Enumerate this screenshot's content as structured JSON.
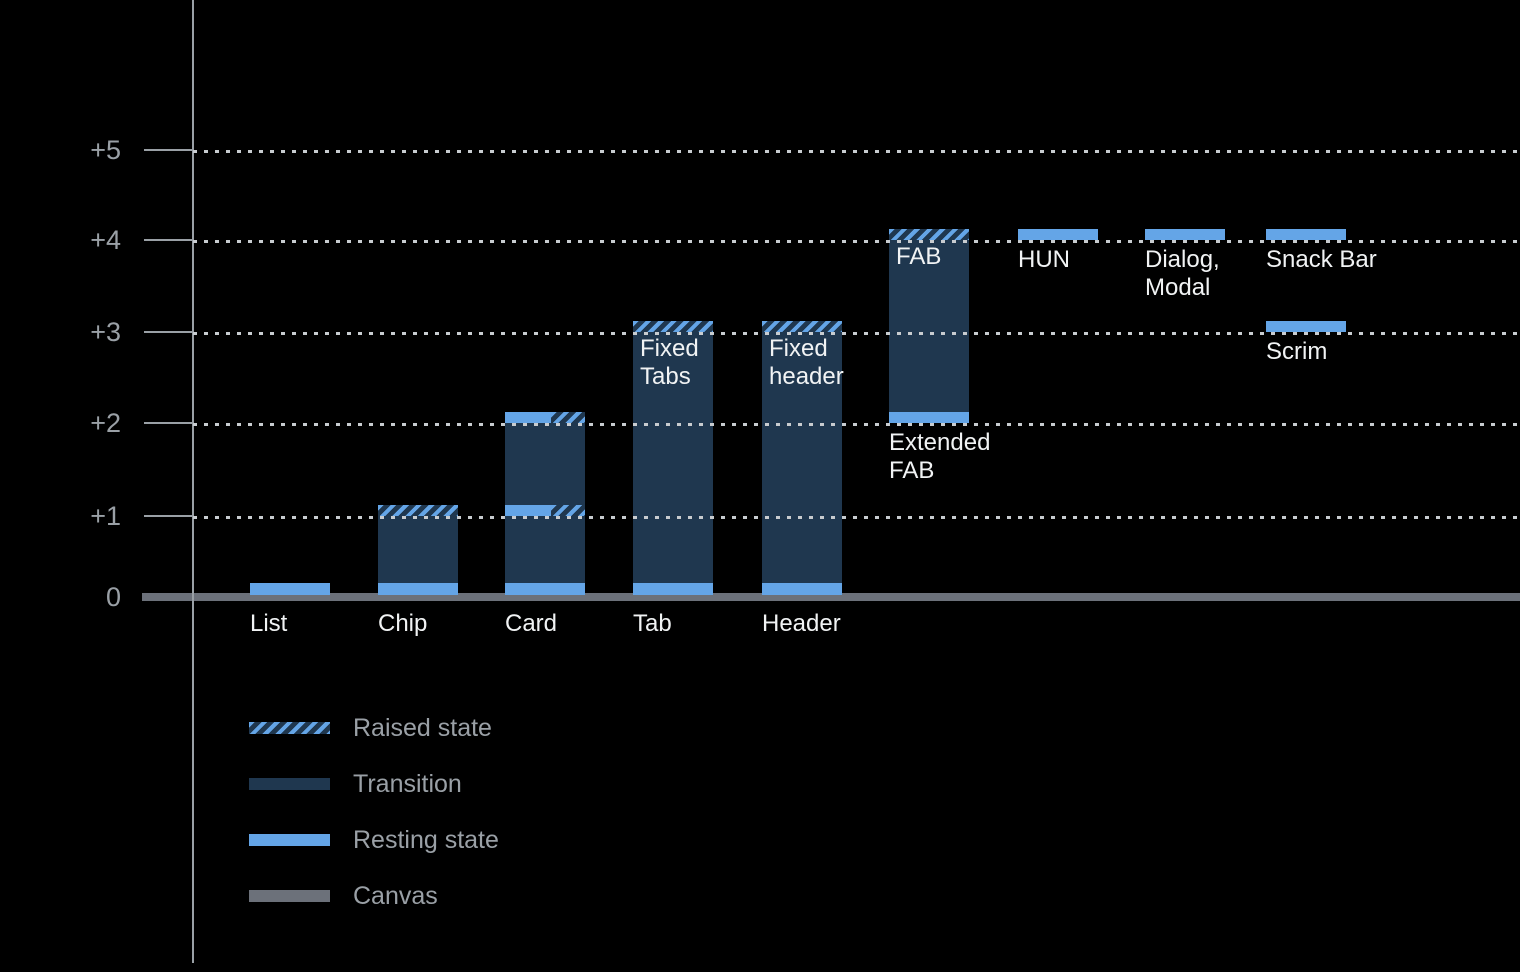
{
  "background": "#000000",
  "colors": {
    "background": "#000000",
    "raised_hatch_blue": "#64A5E7",
    "transition_navy": "#1F374F",
    "resting_blue": "#64A5E7",
    "canvas_gray": "#6C717A",
    "axis_gray": "#9AA0A6",
    "gridline_dot": "#C8CCD0",
    "label_white": "#F1F3F4"
  },
  "axis": {
    "ticks": [
      {
        "label": "+5",
        "level": 5
      },
      {
        "label": "+4",
        "level": 4
      },
      {
        "label": "+3",
        "level": 3
      },
      {
        "label": "+2",
        "level": 2
      },
      {
        "label": "+1",
        "level": 1
      },
      {
        "label": "0",
        "level": 0
      }
    ]
  },
  "legend": {
    "items": [
      {
        "swatch": "raised",
        "label": "Raised state"
      },
      {
        "swatch": "transition",
        "label": "Transition"
      },
      {
        "swatch": "resting",
        "label": "Resting state"
      },
      {
        "swatch": "canvas",
        "label": "Canvas"
      }
    ]
  },
  "chart_data": {
    "type": "bar",
    "title": "",
    "xlabel": "",
    "ylabel": "",
    "y_axis": {
      "tick_labels": [
        "+5",
        "+4",
        "+3",
        "+2",
        "+1",
        "0"
      ],
      "range": [
        0,
        5
      ],
      "gridlines": "dotted",
      "canvas_level": 0
    },
    "legend_position": "bottom-left",
    "legend_entries": [
      "Raised state",
      "Transition",
      "Resting state",
      "Canvas"
    ],
    "components": [
      {
        "name": "List",
        "column": 0,
        "axis_label": "List",
        "resting": [
          {
            "level": 0,
            "span": "full"
          }
        ]
      },
      {
        "name": "Chip",
        "column": 1,
        "axis_label": "Chip",
        "transition": [
          0,
          1
        ],
        "resting": [
          {
            "level": 0,
            "span": "full"
          }
        ],
        "raised": [
          {
            "level": 1,
            "span": "full"
          }
        ]
      },
      {
        "name": "Card",
        "column": 2,
        "axis_label": "Card",
        "transition": [
          0,
          2
        ],
        "resting": [
          {
            "level": 0,
            "span": "full"
          },
          {
            "level": 1,
            "span": "left"
          },
          {
            "level": 2,
            "span": "left"
          }
        ],
        "raised": [
          {
            "level": 1,
            "span": "right"
          },
          {
            "level": 2,
            "span": "right"
          }
        ]
      },
      {
        "name": "Tab",
        "column": 3,
        "axis_label": "Tab",
        "transition": [
          0,
          3
        ],
        "resting": [
          {
            "level": 0,
            "span": "full"
          }
        ],
        "raised": [
          {
            "level": 3,
            "span": "full"
          }
        ],
        "inner_label": [
          "Fixed",
          "Tabs"
        ]
      },
      {
        "name": "Header",
        "column": 4,
        "axis_label": "Header",
        "transition": [
          0,
          3
        ],
        "resting": [
          {
            "level": 0,
            "span": "full"
          }
        ],
        "raised": [
          {
            "level": 3,
            "span": "full"
          }
        ],
        "inner_label": [
          "Fixed",
          "header"
        ]
      },
      {
        "name": "Extended FAB",
        "column": 5,
        "transition": [
          2,
          4
        ],
        "resting": [
          {
            "level": 2,
            "span": "full"
          }
        ],
        "raised": [
          {
            "level": 4,
            "span": "full"
          }
        ],
        "inner_label": [
          "FAB"
        ],
        "below_label": [
          "Extended",
          "FAB"
        ],
        "below_level": 2
      },
      {
        "name": "HUN",
        "column": 6,
        "resting": [
          {
            "level": 4,
            "span": "full"
          }
        ],
        "below_label": [
          "HUN"
        ],
        "below_level": 4
      },
      {
        "name": "Dialog, Modal",
        "column": 7,
        "resting": [
          {
            "level": 4,
            "span": "full"
          }
        ],
        "below_label": [
          "Dialog,",
          "Modal"
        ],
        "below_level": 4
      },
      {
        "name": "Snack Bar",
        "column": 8,
        "resting": [
          {
            "level": 4,
            "span": "full"
          }
        ],
        "below_label": [
          "Snack Bar"
        ],
        "below_level": 4
      },
      {
        "name": "Scrim",
        "column": 8,
        "resting": [
          {
            "level": 3,
            "span": "full"
          }
        ],
        "below_label": [
          "Scrim"
        ],
        "below_level": 3
      }
    ]
  }
}
